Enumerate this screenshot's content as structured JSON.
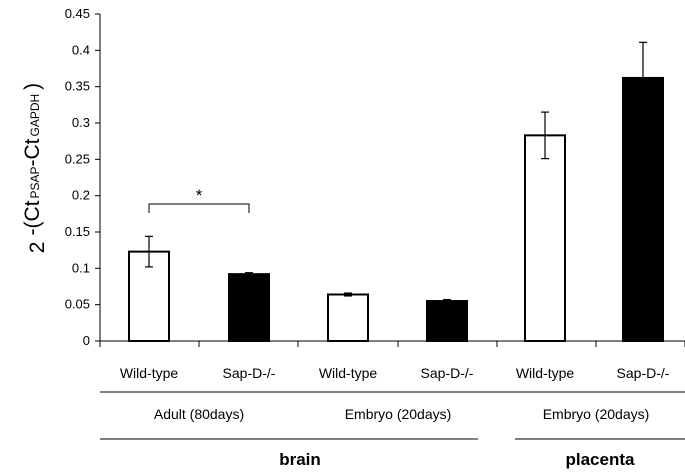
{
  "chart_data": {
    "type": "bar",
    "ylabel": {
      "prefix": "2",
      "minus": "-(Ct",
      "sub1": "PSAP",
      "mid": "-Ct",
      "sub2": "GAPDH",
      "close": ")"
    },
    "ylim": [
      0,
      0.45
    ],
    "yticks": [
      "0",
      "0.05",
      "0.1",
      "0.15",
      "0.2",
      "0.25",
      "0.3",
      "0.35",
      "0.4",
      "0.45"
    ],
    "grid": false,
    "bars": [
      {
        "label": "Wild-type",
        "value": 0.123,
        "error": 0.021,
        "fill": "#ffffff"
      },
      {
        "label": "Sap-D-/-",
        "value": 0.092,
        "error": 0.002,
        "fill": "#000000"
      },
      {
        "label": "Wild-type",
        "value": 0.064,
        "error": 0.002,
        "fill": "#ffffff"
      },
      {
        "label": "Sap-D-/-",
        "value": 0.055,
        "error": 0.002,
        "fill": "#000000"
      },
      {
        "label": "Wild-type",
        "value": 0.283,
        "error": 0.032,
        "fill": "#ffffff"
      },
      {
        "label": "Sap-D-/-",
        "value": 0.362,
        "error": 0.049,
        "fill": "#000000"
      }
    ],
    "groups": [
      "Adult (80days)",
      "Embryo (20days)",
      "Embryo (20days)"
    ],
    "tissues": [
      "brain",
      "placenta"
    ],
    "significance": {
      "between": [
        0,
        1
      ],
      "label": "*"
    }
  }
}
